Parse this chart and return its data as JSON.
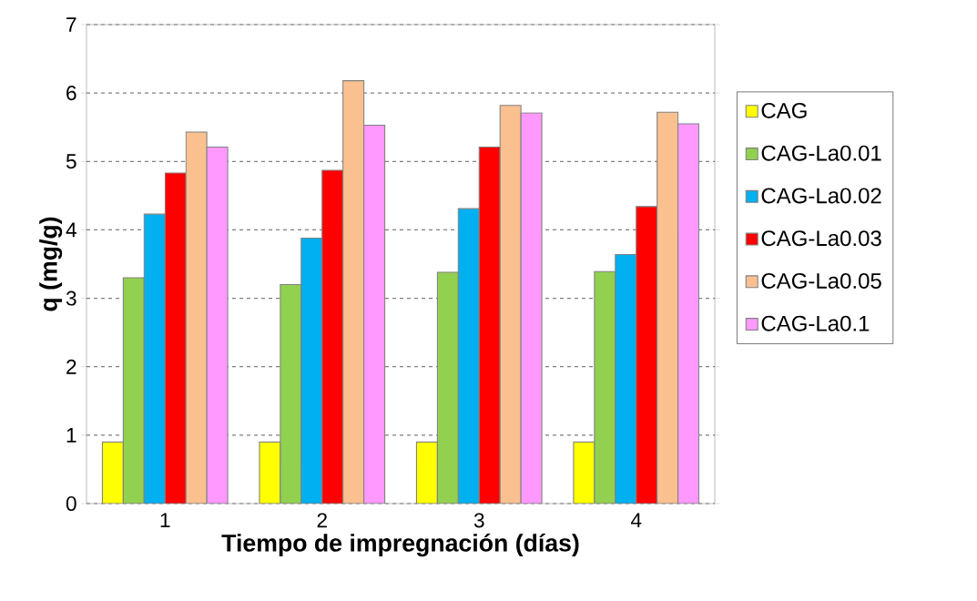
{
  "chart_data": {
    "type": "bar",
    "xlabel": "Tiempo de impregnación (días)",
    "ylabel": "q (mg/g)",
    "categories": [
      "1",
      "2",
      "3",
      "4"
    ],
    "series": [
      {
        "name": "CAG",
        "color": "#ffff00",
        "values": [
          0.9,
          0.9,
          0.9,
          0.9
        ]
      },
      {
        "name": "CAG-La0.01",
        "color": "#92d050",
        "values": [
          3.3,
          3.2,
          3.38,
          3.39
        ]
      },
      {
        "name": "CAG-La0.02",
        "color": "#00b0f0",
        "values": [
          4.23,
          3.88,
          4.31,
          3.64
        ]
      },
      {
        "name": "CAG-La0.03",
        "color": "#ff0000",
        "values": [
          4.83,
          4.87,
          5.21,
          4.34
        ]
      },
      {
        "name": "CAG-La0.05",
        "color": "#fac090",
        "values": [
          5.43,
          6.18,
          5.82,
          5.72
        ]
      },
      {
        "name": "CAG-La0.1",
        "color": "#ff99ff",
        "values": [
          5.21,
          5.53,
          5.71,
          5.55
        ]
      }
    ],
    "ylim": [
      0,
      7
    ],
    "yticks": [
      0,
      1,
      2,
      3,
      4,
      5,
      6,
      7
    ],
    "grid": "y",
    "legend": "right"
  }
}
